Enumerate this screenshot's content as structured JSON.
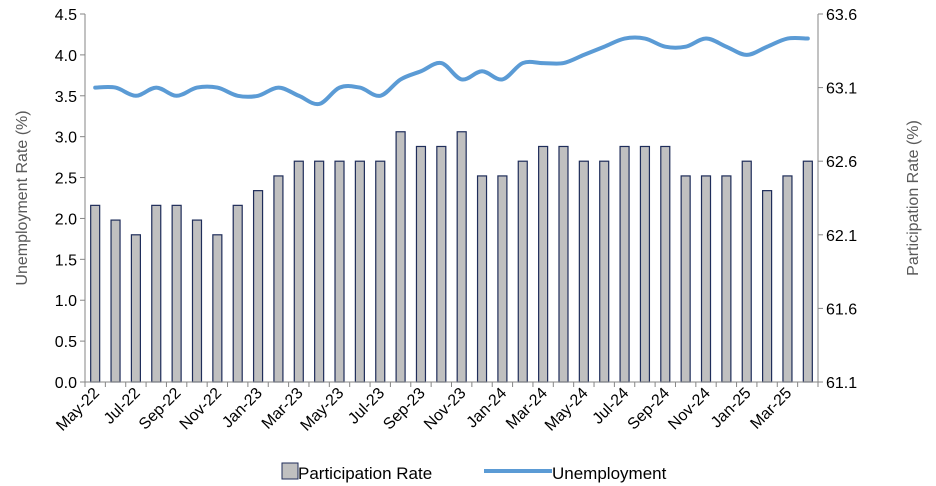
{
  "chart_data": {
    "type": "bar",
    "categories": [
      "May-22",
      "Jun-22",
      "Jul-22",
      "Aug-22",
      "Sep-22",
      "Oct-22",
      "Nov-22",
      "Dec-22",
      "Jan-23",
      "Feb-23",
      "Mar-23",
      "Apr-23",
      "May-23",
      "Jun-23",
      "Jul-23",
      "Aug-23",
      "Sep-23",
      "Oct-23",
      "Nov-23",
      "Dec-23",
      "Jan-24",
      "Feb-24",
      "Mar-24",
      "Apr-24",
      "May-24",
      "Jun-24",
      "Jul-24",
      "Aug-24",
      "Sep-24",
      "Oct-24",
      "Nov-24",
      "Dec-24",
      "Jan-25",
      "Feb-25",
      "Mar-25",
      "Apr-25"
    ],
    "x_tick_labels": [
      "May-22",
      "Jul-22",
      "Sep-22",
      "Nov-22",
      "Jan-23",
      "Mar-23",
      "May-23",
      "Jul-23",
      "Sep-23",
      "Nov-23",
      "Jan-24",
      "Mar-24",
      "May-24",
      "Jul-24",
      "Sep-24",
      "Nov-24",
      "Jan-25",
      "Mar-25"
    ],
    "series": [
      {
        "name": "Participation Rate",
        "type": "bar",
        "axis": "right",
        "color": "#C0C0C0",
        "edge_color": "#1F2D5A",
        "values": [
          62.3,
          62.2,
          62.1,
          62.3,
          62.3,
          62.2,
          62.1,
          62.3,
          62.4,
          62.5,
          62.6,
          62.6,
          62.6,
          62.6,
          62.6,
          62.8,
          62.7,
          62.7,
          62.8,
          62.5,
          62.5,
          62.6,
          62.7,
          62.7,
          62.6,
          62.6,
          62.7,
          62.7,
          62.7,
          62.5,
          62.5,
          62.5,
          62.6,
          62.4,
          62.5,
          62.6
        ]
      },
      {
        "name": "Unemployment",
        "type": "line",
        "axis": "left",
        "color": "#5B9BD5",
        "values": [
          3.6,
          3.6,
          3.5,
          3.6,
          3.5,
          3.6,
          3.6,
          3.5,
          3.5,
          3.6,
          3.5,
          3.4,
          3.6,
          3.6,
          3.5,
          3.7,
          3.8,
          3.9,
          3.7,
          3.8,
          3.7,
          3.9,
          3.9,
          3.9,
          4.0,
          4.1,
          4.2,
          4.2,
          4.1,
          4.1,
          4.2,
          4.1,
          4.0,
          4.1,
          4.2,
          4.2
        ]
      }
    ],
    "y_left": {
      "label": "Unemployment Rate (%)",
      "min": 0,
      "max": 4.5,
      "ticks": [
        "0.0",
        "0.5",
        "1.0",
        "1.5",
        "2.0",
        "2.5",
        "3.0",
        "3.5",
        "4.0",
        "4.5"
      ]
    },
    "y_right": {
      "label": "Participation Rate (%)",
      "min": 61.1,
      "max": 63.6,
      "ticks": [
        "61.1",
        "61.6",
        "62.1",
        "62.6",
        "63.1",
        "63.6"
      ]
    },
    "legend": {
      "position": "bottom",
      "items": [
        {
          "label": "Participation Rate",
          "kind": "bar"
        },
        {
          "label": "Unemployment",
          "kind": "line"
        }
      ]
    },
    "grid": false
  }
}
